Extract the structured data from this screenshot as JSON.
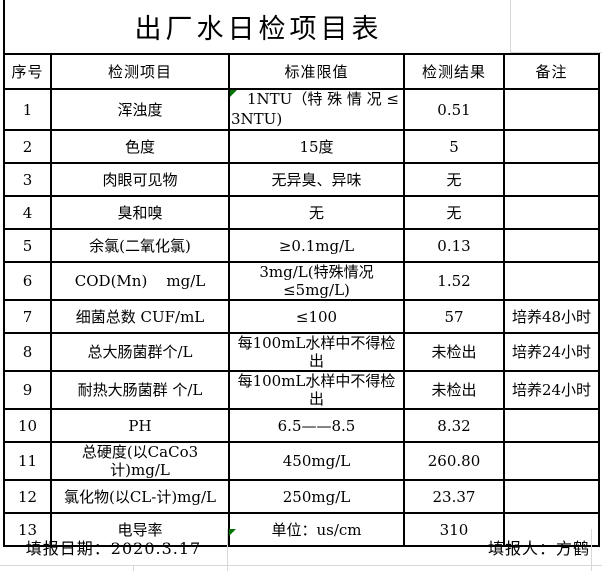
{
  "title": "出厂水日检项目表",
  "table": {
    "headers": [
      "序号",
      "检测项目",
      "标准限值",
      "检测结果",
      "备注"
    ],
    "rows": [
      {
        "no": "1",
        "item": "浑浊度",
        "standard": "1NTU（特 殊 情 况 ≤\n3NTU)",
        "result": "0.51",
        "remark": ""
      },
      {
        "no": "2",
        "item": "色度",
        "standard": "15度",
        "result": "5",
        "remark": ""
      },
      {
        "no": "3",
        "item": "肉眼可见物",
        "standard": "无异臭、异味",
        "result": "无",
        "remark": ""
      },
      {
        "no": "4",
        "item": "臭和嗅",
        "standard": "无",
        "result": "无",
        "remark": ""
      },
      {
        "no": "5",
        "item": "余氯(二氧化氯)",
        "standard": "≥0.1mg/L",
        "result": "0.13",
        "remark": ""
      },
      {
        "no": "6",
        "item": "COD(Mn)    mg/L",
        "standard": "3mg/L(特殊情况≤5mg/L)",
        "result": "1.52",
        "remark": ""
      },
      {
        "no": "7",
        "item": "细菌总数 CUF/mL",
        "standard": "≤100",
        "result": "57",
        "remark": "培养48小时"
      },
      {
        "no": "8",
        "item": "总大肠菌群个/L",
        "standard": "每100mL水样中不得检出",
        "result": "未检出",
        "remark": "培养24小时"
      },
      {
        "no": "9",
        "item": "耐热大肠菌群 个/L",
        "standard": "每100mL水样中不得检出",
        "result": "未检出",
        "remark": "培养24小时"
      },
      {
        "no": "10",
        "item": "PH",
        "standard": "6.5——8.5",
        "result": "8.32",
        "remark": ""
      },
      {
        "no": "11",
        "item": "总硬度(以CaCo3计)mg/L",
        "standard": "450mg/L",
        "result": "260.80",
        "remark": ""
      },
      {
        "no": "12",
        "item": "氯化物(以CL-计)mg/L",
        "standard": "250mg/L",
        "result": "23.37",
        "remark": ""
      },
      {
        "no": "13",
        "item": "电导率",
        "standard": "单位：us/cm",
        "result": "310",
        "remark": ""
      }
    ]
  },
  "footer": {
    "date_label": "填报日期：2020.3.17",
    "reporter_label": "填报人：方鹤"
  },
  "icons": {
    "comment_marker": "green-triangle-cell-flag"
  },
  "colors": {
    "border": "#000000",
    "gridline": "#d8d8d8",
    "comment_marker": "#007400",
    "text": "#000000",
    "background": "#ffffff"
  }
}
